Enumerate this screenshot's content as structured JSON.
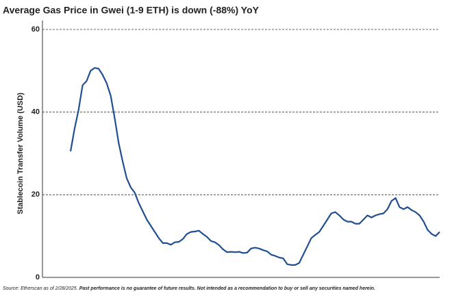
{
  "chart_data": {
    "type": "line",
    "title": "Average Gas Price in Gwei (1-9 ETH) is down (-88%) YoY",
    "y_label": "Stablecoin Transfer Volume (USD)",
    "source": "Source: Etherscan as of 2/28/2025.",
    "disclaimer": "Past performance is no guarantee of future results. Not intended as a recommendation to buy or sell any securities named herein.",
    "series": [
      {
        "color": "#1f4e91",
        "values": [
          null,
          null,
          null,
          null,
          null,
          null,
          null,
          30.5,
          36,
          40.5,
          46.5,
          47.5,
          50,
          50.7,
          50.5,
          49,
          47,
          44,
          38.5,
          32.5,
          28,
          24,
          21.8,
          20.5,
          18,
          16,
          14,
          12.5,
          11,
          9.5,
          8.3,
          8.3,
          7.9,
          8.5,
          8.6,
          9.3,
          10.5,
          11,
          11.1,
          11.3,
          10.5,
          9.8,
          8.8,
          8.5,
          7.8,
          6.8,
          6.1,
          6.2,
          6.1,
          6.2,
          5.9,
          6,
          7,
          7.2,
          7,
          6.6,
          6.3,
          5.5,
          5.2,
          4.8,
          4.6,
          3.2,
          3,
          3,
          3.5,
          5.5,
          7.5,
          9.5,
          10.3,
          11,
          12.5,
          14,
          15.5,
          15.8,
          15,
          14,
          13.5,
          13.5,
          13,
          13,
          14,
          15,
          14.5,
          15,
          15.3,
          15.5,
          16.5,
          18.5,
          19.2,
          17,
          16.5,
          17,
          16.3,
          15.8,
          15,
          13.5,
          11.5,
          10.5,
          10,
          11
        ]
      }
    ],
    "ylim": [
      0,
      60
    ],
    "yticks": [
      0,
      20,
      40,
      60
    ],
    "grid": true
  }
}
